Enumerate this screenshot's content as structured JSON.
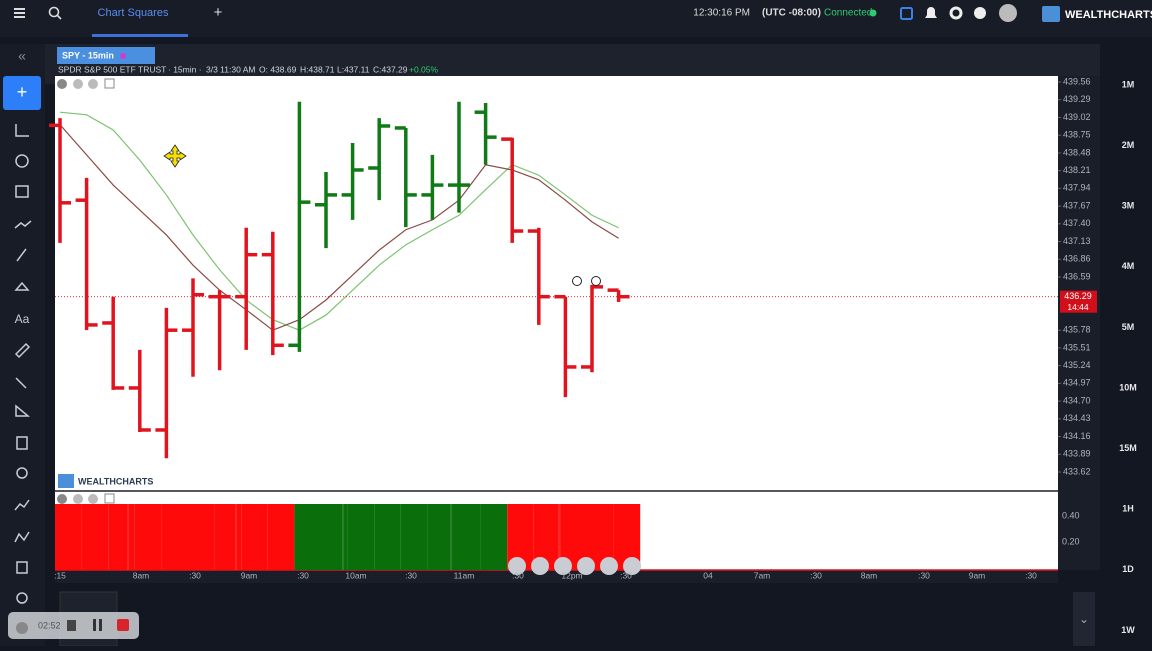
{
  "topbar": {
    "tab": "Chart Squares",
    "time": "12:30:16 PM",
    "timezone": "(UTC -08:00)",
    "status": "Connected",
    "brand": "WEALTHCHARTS"
  },
  "chart": {
    "symbol_tab": "SPY - 15min",
    "info": {
      "name": "SPDR S&P 500 ETF TRUST",
      "interval": "· 15min ·",
      "datetime": "3/3 11:30 AM",
      "open": "O: 438.69",
      "high": "H:438.71",
      "low": "L:437.11",
      "close": "C:437.29",
      "change": "+0.05%"
    },
    "price_axis": [
      {
        "value": 439.56,
        "label": "439.56"
      },
      {
        "value": 439.29,
        "label": "439.29"
      },
      {
        "value": 439.02,
        "label": "439.02"
      },
      {
        "value": 438.75,
        "label": "438.75"
      },
      {
        "value": 438.48,
        "label": "438.48"
      },
      {
        "value": 438.21,
        "label": "438.21"
      },
      {
        "value": 437.94,
        "label": "437.94"
      },
      {
        "value": 437.67,
        "label": "437.67"
      },
      {
        "value": 437.4,
        "label": "437.40"
      },
      {
        "value": 437.13,
        "label": "437.13"
      },
      {
        "value": 436.86,
        "label": "436.86"
      },
      {
        "value": 436.59,
        "label": "436.59"
      },
      {
        "value": 435.78,
        "label": "435.78"
      },
      {
        "value": 435.51,
        "label": "435.51"
      },
      {
        "value": 435.24,
        "label": "435.24"
      },
      {
        "value": 434.97,
        "label": "434.97"
      },
      {
        "value": 434.7,
        "label": "434.70"
      },
      {
        "value": 434.43,
        "label": "434.43"
      },
      {
        "value": 434.16,
        "label": "434.16"
      },
      {
        "value": 433.89,
        "label": "433.89"
      },
      {
        "value": 433.62,
        "label": "433.62"
      }
    ],
    "current_price": {
      "value": 436.29,
      "label": "436.29",
      "countdown": "14:44"
    },
    "bars": [
      {
        "open": 438.9,
        "high": 439.01,
        "low": 437.11,
        "close": 437.72,
        "color": "#e0141e"
      },
      {
        "open": 437.76,
        "high": 438.1,
        "low": 435.78,
        "close": 435.86,
        "color": "#e0141e"
      },
      {
        "open": 435.89,
        "high": 436.29,
        "low": 434.87,
        "close": 434.9,
        "color": "#e0141e"
      },
      {
        "open": 434.9,
        "high": 435.48,
        "low": 434.23,
        "close": 434.26,
        "color": "#e0141e"
      },
      {
        "open": 434.26,
        "high": 436.12,
        "low": 433.83,
        "close": 435.78,
        "color": "#e0141e"
      },
      {
        "open": 435.78,
        "high": 436.57,
        "low": 435.07,
        "close": 436.32,
        "color": "#e0141e"
      },
      {
        "open": 436.29,
        "high": 436.39,
        "low": 435.17,
        "close": 436.29,
        "color": "#e0141e"
      },
      {
        "open": 436.29,
        "high": 437.34,
        "low": 435.48,
        "close": 436.93,
        "color": "#e0141e"
      },
      {
        "open": 436.93,
        "high": 437.28,
        "low": 435.4,
        "close": 435.55,
        "color": "#e0141e"
      },
      {
        "open": 435.55,
        "high": 439.26,
        "low": 435.45,
        "close": 437.73,
        "color": "#0f7a16"
      },
      {
        "open": 437.69,
        "high": 438.19,
        "low": 437.03,
        "close": 437.84,
        "color": "#0f7a16"
      },
      {
        "open": 437.84,
        "high": 438.63,
        "low": 437.46,
        "close": 438.22,
        "color": "#0f7a16"
      },
      {
        "open": 438.25,
        "high": 439.01,
        "low": 437.76,
        "close": 438.89,
        "color": "#0f7a16"
      },
      {
        "open": 438.86,
        "high": 438.86,
        "low": 437.35,
        "close": 437.84,
        "color": "#0f7a16"
      },
      {
        "open": 437.84,
        "high": 438.45,
        "low": 437.46,
        "close": 437.99,
        "color": "#0f7a16"
      },
      {
        "open": 437.99,
        "high": 439.26,
        "low": 437.57,
        "close": 437.99,
        "color": "#0f7a16"
      },
      {
        "open": 439.1,
        "high": 439.24,
        "low": 438.3,
        "close": 438.72,
        "color": "#0f7a16"
      },
      {
        "open": 438.69,
        "high": 438.71,
        "low": 437.11,
        "close": 437.29,
        "color": "#e0141e"
      },
      {
        "open": 437.29,
        "high": 437.34,
        "low": 435.86,
        "close": 436.29,
        "color": "#e0141e"
      },
      {
        "open": 436.29,
        "high": 436.29,
        "low": 434.76,
        "close": 435.22,
        "color": "#e0141e"
      },
      {
        "open": 435.22,
        "high": 436.47,
        "low": 435.14,
        "close": 436.44,
        "color": "#e0141e"
      },
      {
        "open": 436.39,
        "high": 436.39,
        "low": 436.21,
        "close": 436.29,
        "color": "#e0141e"
      }
    ],
    "moving_averages": [
      {
        "color": "#7cc46f",
        "values": [
          439.1,
          439.06,
          438.83,
          438.37,
          437.84,
          437.23,
          436.7,
          436.24,
          435.94,
          435.78,
          436.01,
          436.39,
          436.77,
          437.08,
          437.31,
          437.53,
          437.92,
          438.3,
          438.14,
          437.84,
          437.53,
          437.34
        ]
      },
      {
        "color": "#8b4a45",
        "values": [
          438.91,
          438.45,
          437.99,
          437.61,
          437.23,
          436.77,
          436.39,
          436.09,
          435.78,
          435.94,
          436.24,
          436.62,
          437.0,
          437.31,
          437.46,
          437.76,
          438.3,
          438.22,
          438.07,
          437.76,
          437.43,
          437.18
        ]
      }
    ],
    "watermark": "WEALTHCHARTS",
    "indicator_axis": [
      "0.40",
      "0.20"
    ],
    "time_axis": [
      ":15",
      "8am",
      ":30",
      "9am",
      ":30",
      "10am",
      ":30",
      "11am",
      ":30",
      "12pm",
      ":30",
      "04",
      "7am",
      ":30",
      "8am",
      ":30",
      "9am",
      ":30"
    ]
  },
  "timeframes": [
    "1M",
    "2M",
    "3M",
    "4M",
    "5M",
    "10M",
    "15M",
    "1H",
    "1D",
    "1W"
  ],
  "recorder": {
    "time": "02:52"
  }
}
